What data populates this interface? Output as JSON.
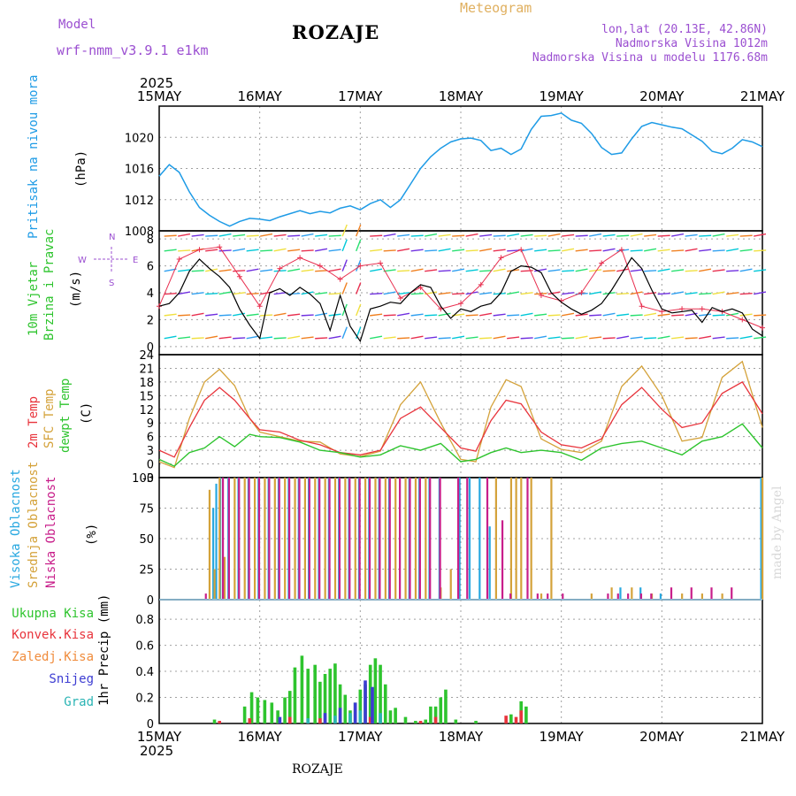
{
  "header": {
    "model_label": "Model",
    "model_name": "wrf-nmm_v3.9.1 e1km",
    "station": "ROZAJE",
    "meteogram_label": "Meteogram",
    "lonlat": "lon,lat (20.13E, 42.86N)",
    "elevation": "Nadmorska Visina 1012m",
    "model_elevation": "Nadmorska Visina u modelu 1176.68m",
    "footer_station": "ROZAJE",
    "credit": "made by Angel"
  },
  "colors": {
    "pressure": "#1e9be6",
    "temp2m": "#e8343c",
    "sfc_temp": "#d4a23a",
    "dewpt": "#2ec42e",
    "cloud_high": "#28a8e0",
    "cloud_mid": "#d4a23a",
    "cloud_low": "#c81e8a",
    "precip_total": "#2ec42e",
    "precip_conv": "#e8343c",
    "precip_frozen": "#f08c3c",
    "precip_snow": "#3c3cd2",
    "precip_grad": "#2ab4b4",
    "header_purple": "#9b4fd1",
    "header_orange": "#e0b060"
  },
  "chart_data": [
    {
      "type": "line",
      "title": "",
      "xlabel": "",
      "ylabel_left": "Pritisak na nivou mora",
      "ylabel_unit": "(hPa)",
      "x_start_label": "2025",
      "x_ticks": [
        "15MAY",
        "16MAY",
        "17MAY",
        "18MAY",
        "19MAY",
        "20MAY",
        "21MAY"
      ],
      "y_ticks": [
        "1008",
        "1012",
        "1016",
        "1020"
      ],
      "ylim": [
        1008,
        1024
      ],
      "grid": true,
      "series": [
        {
          "name": "pressure",
          "x": [
            0,
            0.1,
            0.2,
            0.3,
            0.4,
            0.5,
            0.6,
            0.7,
            0.8,
            0.9,
            1.0,
            1.1,
            1.2,
            1.3,
            1.4,
            1.5,
            1.6,
            1.7,
            1.8,
            1.9,
            2.0,
            2.1,
            2.2,
            2.3,
            2.4,
            2.5,
            2.6,
            2.7,
            2.8,
            2.9,
            3.0,
            3.1,
            3.2,
            3.3,
            3.4,
            3.5,
            3.6,
            3.7,
            3.8,
            3.9,
            4.0,
            4.1,
            4.2,
            4.3,
            4.4,
            4.5,
            4.6,
            4.7,
            4.8,
            4.9,
            5.0,
            5.1,
            5.2,
            5.3,
            5.4,
            5.5,
            5.6,
            5.7,
            5.8,
            5.9,
            6.0
          ],
          "values": [
            1015,
            1016.5,
            1015.5,
            1013,
            1011,
            1010,
            1009.2,
            1008.6,
            1009.2,
            1009.6,
            1009.5,
            1009.3,
            1009.8,
            1010.2,
            1010.6,
            1010.2,
            1010.5,
            1010.3,
            1010.9,
            1011.2,
            1010.7,
            1011.5,
            1012,
            1011,
            1012,
            1014,
            1016,
            1017.5,
            1018.6,
            1019.4,
            1019.8,
            1019.9,
            1019.6,
            1018.3,
            1018.6,
            1017.8,
            1018.5,
            1021,
            1022.7,
            1022.8,
            1023.1,
            1022.2,
            1021.8,
            1020.5,
            1018.7,
            1017.8,
            1018,
            1019.8,
            1021.4,
            1021.9,
            1021.6,
            1021.3,
            1021.1,
            1020.3,
            1019.5,
            1018.2,
            1017.9,
            1018.6,
            1019.7,
            1019.4,
            1018.8
          ]
        }
      ]
    },
    {
      "type": "line",
      "title": "",
      "ylabel_left_1": "10m Vjetar",
      "ylabel_left_2": "Brzina i Pravac",
      "ylabel_unit": "(m/s)",
      "compass_n": "N",
      "compass_w": "W",
      "compass_e": "E",
      "compass_s": "S",
      "y_ticks": [
        "0",
        "2",
        "4",
        "6",
        "8"
      ],
      "ylim": [
        -0.6,
        8.6
      ],
      "grid": true,
      "series": [
        {
          "name": "wind speed",
          "x": [
            0,
            0.1,
            0.2,
            0.3,
            0.4,
            0.5,
            0.6,
            0.7,
            0.8,
            0.9,
            1.0,
            1.1,
            1.2,
            1.3,
            1.4,
            1.5,
            1.6,
            1.7,
            1.8,
            1.9,
            2.0,
            2.1,
            2.2,
            2.3,
            2.4,
            2.5,
            2.6,
            2.7,
            2.8,
            2.9,
            3.0,
            3.1,
            3.2,
            3.3,
            3.4,
            3.5,
            3.6,
            3.7,
            3.8,
            3.9,
            4.0,
            4.1,
            4.2,
            4.3,
            4.4,
            4.5,
            4.6,
            4.7,
            4.8,
            4.9,
            5.0,
            5.1,
            5.2,
            5.3,
            5.4,
            5.5,
            5.6,
            5.7,
            5.8,
            5.9,
            6.0
          ],
          "values": [
            3,
            3.2,
            4,
            5.6,
            6.5,
            5.8,
            5.2,
            4.4,
            2.8,
            1.6,
            0.6,
            4,
            4.3,
            3.8,
            4.4,
            3.9,
            3.2,
            1.2,
            3.8,
            1.5,
            0.4,
            2.8,
            3,
            3.3,
            3.2,
            4,
            4.6,
            4.4,
            3,
            2.1,
            2.8,
            2.6,
            3,
            3.2,
            4,
            5.6,
            6,
            5.9,
            5.5,
            4,
            3.3,
            2.8,
            2.4,
            2.7,
            3.2,
            4.2,
            5.4,
            6.6,
            5.8,
            4.2,
            2.8,
            2.5,
            2.6,
            2.7,
            1.8,
            2.9,
            2.6,
            2.8,
            2.5,
            1.3,
            0.8
          ]
        },
        {
          "name": "gust",
          "x": [
            0,
            0.2,
            0.4,
            0.6,
            0.8,
            1.0,
            1.2,
            1.4,
            1.6,
            1.8,
            2.0,
            2.2,
            2.4,
            2.6,
            2.8,
            3.0,
            3.2,
            3.4,
            3.6,
            3.8,
            4.0,
            4.2,
            4.4,
            4.6,
            4.8,
            5.0,
            5.2,
            5.4,
            5.6,
            5.8,
            6.0
          ],
          "values": [
            3,
            6.5,
            7.2,
            7.4,
            5.2,
            3,
            5.8,
            6.6,
            6,
            5,
            6,
            6.2,
            3.6,
            4.4,
            2.8,
            3.2,
            4.6,
            6.6,
            7.2,
            3.8,
            3.4,
            4,
            6.2,
            7.2,
            3,
            2.6,
            2.8,
            2.8,
            2.6,
            2,
            1.4
          ]
        }
      ]
    },
    {
      "type": "line",
      "title": "",
      "ylabel_left_1": "2m Temp",
      "ylabel_left_2": "SFC Temp",
      "ylabel_left_3": "dewpt Temp",
      "ylabel_unit": "(C)",
      "y_ticks": [
        "24",
        "21",
        "18",
        "15",
        "12",
        "9",
        "6",
        "3",
        "0",
        "-3"
      ],
      "ylim": [
        -3,
        24
      ],
      "grid": true,
      "series": [
        {
          "name": "2m Temp",
          "x": [
            0,
            0.15,
            0.3,
            0.45,
            0.6,
            0.75,
            0.9,
            1.0,
            1.2,
            1.4,
            1.6,
            1.8,
            2.0,
            2.2,
            2.4,
            2.6,
            2.8,
            3.0,
            3.15,
            3.3,
            3.45,
            3.6,
            3.8,
            4.0,
            4.2,
            4.4,
            4.6,
            4.8,
            5.0,
            5.2,
            5.4,
            5.6,
            5.8,
            6.0
          ],
          "values": [
            3,
            1.5,
            8,
            14,
            16.8,
            14,
            10,
            7.5,
            7,
            5.2,
            4.2,
            2.5,
            2,
            3,
            10,
            12.5,
            8,
            3.5,
            2.8,
            9.5,
            14,
            13.2,
            7,
            4.2,
            3.5,
            5.5,
            13,
            16.8,
            12,
            8,
            9,
            15.5,
            18,
            11
          ]
        },
        {
          "name": "SFC Temp",
          "x": [
            0,
            0.15,
            0.3,
            0.45,
            0.6,
            0.75,
            0.9,
            1.0,
            1.2,
            1.4,
            1.6,
            1.8,
            2.0,
            2.2,
            2.4,
            2.6,
            2.8,
            3.0,
            3.15,
            3.3,
            3.45,
            3.6,
            3.8,
            4.0,
            4.2,
            4.4,
            4.6,
            4.8,
            5.0,
            5.2,
            5.4,
            5.6,
            5.8,
            6.0
          ],
          "values": [
            0.5,
            -0.8,
            10,
            18,
            20.8,
            17.2,
            10,
            7,
            6,
            5,
            4.8,
            2.2,
            1.6,
            2.8,
            13,
            18,
            9,
            1,
            0.5,
            12.5,
            18.5,
            17,
            5.5,
            3.2,
            2.5,
            5,
            17,
            21.5,
            15,
            5,
            5.8,
            19,
            22.5,
            8
          ]
        },
        {
          "name": "dewpt Temp",
          "x": [
            0,
            0.15,
            0.3,
            0.45,
            0.6,
            0.75,
            0.9,
            1.0,
            1.2,
            1.4,
            1.6,
            1.8,
            2.0,
            2.2,
            2.4,
            2.6,
            2.8,
            3.0,
            3.15,
            3.3,
            3.45,
            3.6,
            3.8,
            4.0,
            4.2,
            4.4,
            4.6,
            4.8,
            5.0,
            5.2,
            5.4,
            5.6,
            5.8,
            6.0
          ],
          "values": [
            1,
            -0.5,
            2.5,
            3.5,
            6,
            3.8,
            6.5,
            6,
            5.8,
            4.8,
            3,
            2.5,
            1.5,
            2,
            4,
            3,
            4.5,
            0.5,
            1,
            2.5,
            3.5,
            2.5,
            3,
            2.5,
            0.8,
            3.5,
            4.5,
            5,
            3.5,
            2,
            5,
            6,
            8.8,
            3.5
          ]
        }
      ]
    },
    {
      "type": "bar",
      "title": "",
      "ylabel_left_1": "Visoka Oblacnost",
      "ylabel_left_2": "Srednja Oblacnost",
      "ylabel_left_3": "Niska Oblacnost",
      "ylabel_unit": "(%)",
      "y_ticks": [
        "0",
        "25",
        "50",
        "75",
        "100"
      ],
      "ylim": [
        0,
        100
      ],
      "grid": true,
      "series": [
        {
          "name": "Visoka Oblacnost",
          "x": [
            0.55,
            0.58,
            0.62,
            0.7,
            0.8,
            0.9,
            1.0,
            1.1,
            1.2,
            1.3,
            1.4,
            1.5,
            1.6,
            1.7,
            1.8,
            1.9,
            2.0,
            2.1,
            2.2,
            2.3,
            2.5,
            2.6,
            2.7,
            2.8,
            3.0,
            3.1,
            3.2,
            3.3,
            4.6,
            4.8,
            5.0,
            6.0
          ],
          "values": [
            75,
            95,
            100,
            100,
            100,
            100,
            100,
            100,
            100,
            100,
            100,
            100,
            100,
            100,
            100,
            100,
            100,
            100,
            100,
            100,
            100,
            100,
            100,
            100,
            100,
            100,
            100,
            60,
            10,
            10,
            5,
            100
          ]
        },
        {
          "name": "Srednja Oblacnost",
          "x": [
            0.5,
            0.55,
            0.6,
            0.65,
            0.75,
            0.85,
            0.95,
            1.05,
            1.15,
            1.25,
            1.35,
            1.45,
            1.55,
            1.65,
            1.75,
            1.85,
            1.95,
            2.05,
            2.15,
            2.25,
            2.35,
            2.45,
            2.55,
            2.65,
            2.8,
            2.9,
            3.35,
            3.5,
            3.55,
            3.6,
            3.7,
            3.8,
            3.9,
            4.3,
            4.5,
            4.7,
            4.9,
            5.2,
            5.4,
            5.6,
            6.0
          ],
          "values": [
            90,
            25,
            100,
            35,
            100,
            100,
            100,
            100,
            100,
            100,
            100,
            100,
            100,
            100,
            100,
            100,
            100,
            100,
            100,
            100,
            100,
            100,
            100,
            100,
            10,
            25,
            100,
            100,
            100,
            100,
            100,
            5,
            100,
            5,
            10,
            10,
            5,
            5,
            5,
            5,
            100
          ]
        },
        {
          "name": "Niska Oblacnost",
          "x": [
            0.45,
            0.62,
            0.68,
            0.78,
            0.88,
            0.98,
            1.08,
            1.18,
            1.28,
            1.38,
            1.48,
            1.58,
            1.68,
            1.78,
            1.88,
            1.98,
            2.08,
            2.18,
            2.28,
            2.38,
            2.48,
            2.58,
            2.68,
            2.78,
            2.96,
            3.05,
            3.25,
            3.4,
            3.48,
            3.65,
            3.75,
            3.85,
            4.0,
            4.45,
            4.55,
            4.65,
            4.78,
            4.88,
            5.08,
            5.28,
            5.48,
            5.68
          ],
          "values": [
            5,
            100,
            100,
            100,
            100,
            100,
            100,
            100,
            100,
            100,
            100,
            100,
            100,
            100,
            100,
            100,
            100,
            100,
            100,
            100,
            100,
            100,
            100,
            100,
            100,
            100,
            100,
            65,
            5,
            100,
            5,
            5,
            5,
            5,
            5,
            5,
            5,
            5,
            10,
            10,
            10,
            10
          ]
        }
      ]
    },
    {
      "type": "bar",
      "title": "",
      "ylabel_left": "1hr Precip (mm)",
      "legend_total": "Ukupna Kisa",
      "legend_conv": "Konvek.Kisa",
      "legend_frozen": "Zaledj.Kisa",
      "legend_snow": "Snijeg",
      "legend_grad": "Grad",
      "y_ticks": [
        "0",
        "0.2",
        "0.4",
        "0.6",
        "0.8"
      ],
      "ylim": [
        0,
        0.95
      ],
      "grid": true,
      "x_end_label": "2025",
      "series": [
        {
          "name": "Ukupna Kisa",
          "x": [
            0.55,
            0.85,
            0.92,
            0.98,
            1.05,
            1.12,
            1.18,
            1.25,
            1.3,
            1.35,
            1.42,
            1.48,
            1.55,
            1.6,
            1.65,
            1.7,
            1.75,
            1.8,
            1.85,
            1.9,
            1.95,
            2.0,
            2.05,
            2.1,
            2.15,
            2.2,
            2.25,
            2.3,
            2.35,
            2.45,
            2.55,
            2.65,
            2.7,
            2.75,
            2.8,
            2.85,
            2.95,
            3.15,
            3.5,
            3.6,
            3.65
          ],
          "values": [
            0.03,
            0.13,
            0.24,
            0.2,
            0.18,
            0.16,
            0.1,
            0.2,
            0.25,
            0.43,
            0.52,
            0.42,
            0.45,
            0.32,
            0.38,
            0.42,
            0.46,
            0.3,
            0.22,
            0.1,
            0.16,
            0.26,
            0.3,
            0.45,
            0.5,
            0.45,
            0.3,
            0.1,
            0.12,
            0.05,
            0.02,
            0.03,
            0.13,
            0.13,
            0.2,
            0.26,
            0.03,
            0.02,
            0.07,
            0.17,
            0.13
          ]
        },
        {
          "name": "Konvek.Kisa",
          "x": [
            0.6,
            0.9,
            1.3,
            1.6,
            2.1,
            2.6,
            2.75,
            3.45,
            3.55,
            3.6
          ],
          "values": [
            0.02,
            0.04,
            0.05,
            0.04,
            0.05,
            0.02,
            0.05,
            0.06,
            0.05,
            0.1
          ]
        },
        {
          "name": "Snijeg",
          "x": [
            1.2,
            1.65,
            1.8,
            1.95,
            2.05,
            2.12
          ],
          "values": [
            0.05,
            0.08,
            0.12,
            0.16,
            0.33,
            0.28
          ]
        },
        {
          "name": "Grad",
          "x": [
            1.48,
            1.75,
            1.9,
            2.0,
            2.2
          ],
          "values": [
            0.04,
            0.06,
            0.08,
            0.1,
            0.08
          ]
        }
      ]
    }
  ]
}
